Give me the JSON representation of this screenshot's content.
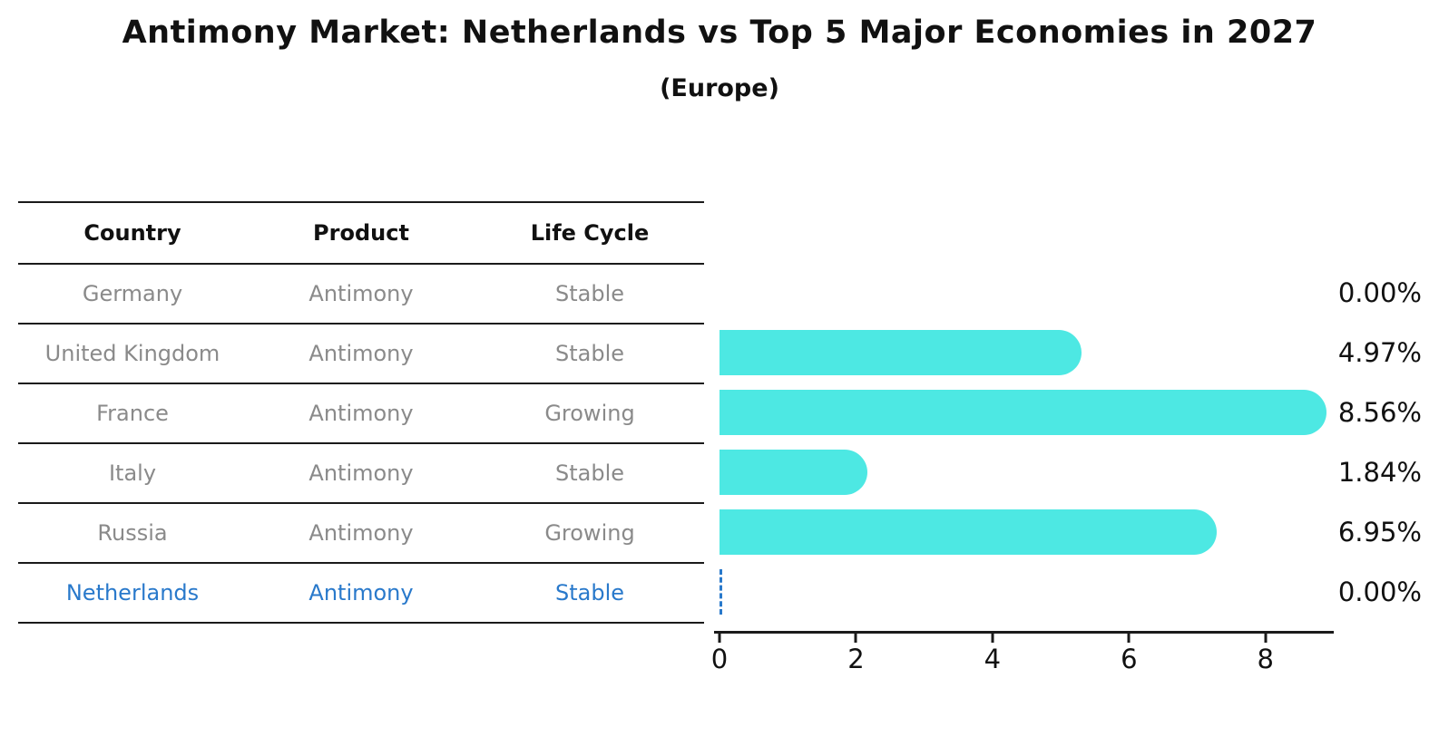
{
  "title": "Antimony Market: Netherlands vs Top 5 Major Economies in 2027",
  "subtitle": "(Europe)",
  "colors": {
    "bar": "#4DE8E3",
    "highlight": "#2979CB",
    "row_text": "#8a8a8a",
    "line": "#1a1a1a"
  },
  "table": {
    "headers": [
      "Country",
      "Product",
      "Life Cycle"
    ],
    "rows": [
      {
        "country": "Germany",
        "product": "Antimony",
        "life_cycle": "Stable",
        "highlight": false
      },
      {
        "country": "United Kingdom",
        "product": "Antimony",
        "life_cycle": "Stable",
        "highlight": false
      },
      {
        "country": "France",
        "product": "Antimony",
        "life_cycle": "Growing",
        "highlight": false
      },
      {
        "country": "Italy",
        "product": "Antimony",
        "life_cycle": "Stable",
        "highlight": false
      },
      {
        "country": "Russia",
        "product": "Antimony",
        "life_cycle": "Growing",
        "highlight": false
      },
      {
        "country": "Netherlands",
        "product": "Antimony",
        "life_cycle": "Stable",
        "highlight": true
      }
    ]
  },
  "chart_data": {
    "type": "bar",
    "orientation": "horizontal",
    "categories": [
      "Germany",
      "United Kingdom",
      "France",
      "Italy",
      "Russia",
      "Netherlands"
    ],
    "values": [
      0.0,
      4.97,
      8.56,
      1.84,
      6.95,
      0.0
    ],
    "labels": [
      "0.00%",
      "4.97%",
      "8.56%",
      "1.84%",
      "6.95%",
      "0.00%"
    ],
    "xticks": [
      0,
      2,
      4,
      6,
      8
    ],
    "xlim": [
      0,
      9.0
    ],
    "grid": false,
    "legend": false,
    "highlight_index": 5,
    "highlight_marker": "dashed-zero-line"
  }
}
